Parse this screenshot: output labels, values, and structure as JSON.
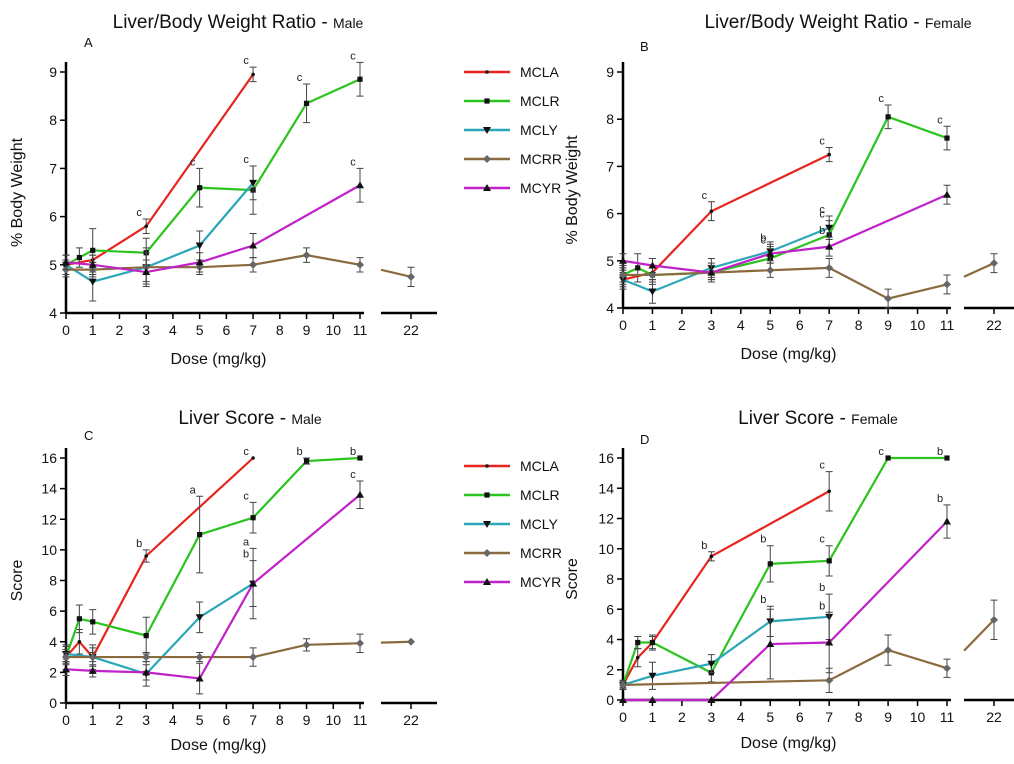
{
  "legend_entries": [
    {
      "name": "MCLA",
      "color": "#e8241f",
      "marker": "dot"
    },
    {
      "name": "MCLR",
      "color": "#2bc41e",
      "marker": "square"
    },
    {
      "name": "MCLY",
      "color": "#2aa7b8",
      "marker": "triangle-down"
    },
    {
      "name": "MCRR",
      "color": "#8b6a3e",
      "marker": "diamond"
    },
    {
      "name": "MCYR",
      "color": "#c021c8",
      "marker": "triangle-up"
    }
  ],
  "chart_data": [
    {
      "type": "line",
      "panel_letter": "A",
      "title": "Liver/Body Weight Ratio",
      "title_sub": "Male",
      "xlabel": "Dose (mg/kg)",
      "ylabel": "% Body Weight",
      "xlim": [
        0,
        11
      ],
      "ylim": [
        4,
        9
      ],
      "x_ticks": [
        0,
        1,
        2,
        3,
        4,
        5,
        6,
        7,
        8,
        9,
        10,
        11
      ],
      "y_ticks": [
        4,
        5,
        6,
        7,
        8,
        9
      ],
      "break_tick": 22,
      "series": [
        {
          "name": "MCLA",
          "x": [
            0,
            1,
            3,
            7
          ],
          "y": [
            5.0,
            5.1,
            5.8,
            8.95
          ],
          "err": [
            0.1,
            0.1,
            0.15,
            0.15
          ],
          "labels": [
            "",
            "",
            "c",
            "c"
          ]
        },
        {
          "name": "MCLR",
          "x": [
            0,
            0.5,
            1,
            3,
            5,
            7,
            9,
            11
          ],
          "y": [
            5.0,
            5.15,
            5.3,
            5.25,
            6.6,
            6.55,
            8.35,
            8.85
          ],
          "err": [
            0.2,
            0.2,
            0.45,
            0.3,
            0.4,
            0.5,
            0.4,
            0.35
          ],
          "labels": [
            "",
            "",
            "",
            "",
            "c",
            "c",
            "c",
            "c"
          ]
        },
        {
          "name": "MCLY",
          "x": [
            0,
            1,
            3,
            5,
            7
          ],
          "y": [
            5.0,
            4.65,
            4.95,
            5.4,
            6.7
          ],
          "err": [
            0.2,
            0.4,
            0.3,
            0.3,
            0.35
          ],
          "labels": [
            "",
            "",
            "",
            "",
            ""
          ]
        },
        {
          "name": "MCRR",
          "x": [
            0,
            1,
            3,
            5,
            7,
            9,
            11,
            22
          ],
          "y": [
            4.9,
            4.9,
            4.95,
            4.95,
            5.0,
            5.2,
            5.0,
            4.75
          ],
          "err": [
            0.15,
            0.15,
            0.4,
            0.15,
            0.15,
            0.15,
            0.15,
            0.2
          ],
          "labels": [
            "",
            "",
            "",
            "",
            "",
            "",
            "",
            ""
          ]
        },
        {
          "name": "MCYR",
          "x": [
            0,
            1,
            3,
            5,
            7,
            11
          ],
          "y": [
            5.05,
            5.0,
            4.85,
            5.05,
            5.4,
            6.65
          ],
          "err": [
            0.15,
            0.2,
            0.25,
            0.2,
            0.25,
            0.35
          ],
          "labels": [
            "",
            "",
            "",
            "",
            "",
            "c"
          ]
        }
      ]
    },
    {
      "type": "line",
      "panel_letter": "B",
      "title": "Liver/Body Weight Ratio",
      "title_sub": "Female",
      "xlabel": "Dose (mg/kg)",
      "ylabel": "% Body Weight",
      "xlim": [
        0,
        11
      ],
      "ylim": [
        4,
        9
      ],
      "x_ticks": [
        0,
        1,
        2,
        3,
        4,
        5,
        6,
        7,
        8,
        9,
        10,
        11
      ],
      "y_ticks": [
        4,
        5,
        6,
        7,
        8,
        9
      ],
      "break_tick": 22,
      "series": [
        {
          "name": "MCLA",
          "x": [
            0,
            1,
            3,
            7
          ],
          "y": [
            4.6,
            4.75,
            6.05,
            7.25
          ],
          "err": [
            0.15,
            0.15,
            0.2,
            0.15
          ],
          "labels": [
            "",
            "",
            "c",
            "c"
          ]
        },
        {
          "name": "MCLR",
          "x": [
            0,
            0.5,
            1,
            3,
            5,
            7,
            9,
            11
          ],
          "y": [
            4.7,
            4.85,
            4.7,
            4.75,
            5.05,
            5.55,
            8.05,
            7.6
          ],
          "err": [
            0.2,
            0.3,
            0.2,
            0.2,
            0.25,
            0.3,
            0.25,
            0.25
          ],
          "labels": [
            "",
            "",
            "",
            "",
            "c",
            "c",
            "c",
            "c"
          ]
        },
        {
          "name": "MCLY",
          "x": [
            0,
            1,
            3,
            5,
            7
          ],
          "y": [
            4.6,
            4.35,
            4.85,
            5.2,
            5.7
          ],
          "err": [
            0.2,
            0.25,
            0.2,
            0.2,
            0.25
          ],
          "labels": [
            "",
            "",
            "",
            "",
            "c"
          ]
        },
        {
          "name": "MCRR",
          "x": [
            0,
            1,
            3,
            5,
            7,
            9,
            11,
            22
          ],
          "y": [
            4.7,
            4.7,
            4.75,
            4.8,
            4.85,
            4.2,
            4.5,
            4.95
          ],
          "err": [
            0.15,
            0.15,
            0.15,
            0.15,
            0.2,
            0.2,
            0.2,
            0.2
          ],
          "labels": [
            "",
            "",
            "",
            "",
            "",
            "",
            "",
            ""
          ]
        },
        {
          "name": "MCYR",
          "x": [
            0,
            1,
            3,
            5,
            7,
            11
          ],
          "y": [
            5.0,
            4.9,
            4.75,
            5.15,
            5.3,
            6.4
          ],
          "err": [
            0.15,
            0.15,
            0.15,
            0.2,
            0.2,
            0.2
          ],
          "labels": [
            "",
            "",
            "",
            "b",
            "b",
            ""
          ]
        }
      ]
    },
    {
      "type": "line",
      "panel_letter": "C",
      "title": "Liver Score",
      "title_sub": "Male",
      "xlabel": "Dose (mg/kg)",
      "ylabel": "Score",
      "xlim": [
        0,
        11
      ],
      "ylim": [
        0,
        16
      ],
      "x_ticks": [
        0,
        1,
        2,
        3,
        4,
        5,
        6,
        7,
        8,
        9,
        10,
        11
      ],
      "y_ticks": [
        0,
        2,
        4,
        6,
        8,
        10,
        12,
        14,
        16
      ],
      "break_tick": 22,
      "series": [
        {
          "name": "MCLA",
          "x": [
            0,
            0.5,
            1,
            3,
            7
          ],
          "y": [
            3.0,
            4.0,
            3.0,
            9.6,
            16
          ],
          "err": [
            0.5,
            0.8,
            0.8,
            0.4,
            0
          ],
          "labels": [
            "",
            "",
            "",
            "b",
            "c"
          ]
        },
        {
          "name": "MCLR",
          "x": [
            0,
            0.5,
            1,
            3,
            5,
            7,
            9,
            11
          ],
          "y": [
            3.0,
            5.5,
            5.3,
            4.4,
            11.0,
            12.1,
            15.8,
            16
          ],
          "err": [
            0.8,
            0.9,
            0.8,
            1.2,
            2.5,
            1.0,
            0.2,
            0
          ],
          "labels": [
            "",
            "",
            "",
            "",
            "a",
            "c",
            "b",
            "b"
          ]
        },
        {
          "name": "MCLY",
          "x": [
            0,
            1,
            3,
            5,
            7
          ],
          "y": [
            3.2,
            3.0,
            1.9,
            5.6,
            7.8
          ],
          "err": [
            0.5,
            0.6,
            0.8,
            1.0,
            2.3
          ],
          "labels": [
            "",
            "",
            "",
            "",
            "a"
          ]
        },
        {
          "name": "MCRR",
          "x": [
            0,
            1,
            3,
            5,
            7,
            9,
            11,
            22
          ],
          "y": [
            3.0,
            3.0,
            3.0,
            3.0,
            3.0,
            3.8,
            3.9,
            4.0
          ],
          "err": [
            0.3,
            0.3,
            0.3,
            0.3,
            0.6,
            0.4,
            0.6,
            0
          ],
          "labels": [
            "",
            "",
            "",
            "",
            "",
            "",
            "",
            ""
          ]
        },
        {
          "name": "MCYR",
          "x": [
            0,
            1,
            3,
            5,
            7,
            11
          ],
          "y": [
            2.2,
            2.1,
            2.0,
            1.6,
            7.8,
            13.6
          ],
          "err": [
            0.4,
            0.4,
            0.5,
            1.0,
            1.5,
            0.9
          ],
          "labels": [
            "",
            "",
            "",
            "",
            "b",
            "c"
          ]
        }
      ]
    },
    {
      "type": "line",
      "panel_letter": "D",
      "title": "Liver Score",
      "title_sub": "Female",
      "xlabel": "Dose (mg/kg)",
      "ylabel": "Score",
      "xlim": [
        0,
        11
      ],
      "ylim": [
        0,
        16
      ],
      "x_ticks": [
        0,
        1,
        2,
        3,
        4,
        5,
        6,
        7,
        8,
        9,
        10,
        11
      ],
      "y_ticks": [
        0,
        2,
        4,
        6,
        8,
        10,
        12,
        14,
        16
      ],
      "break_tick": 22,
      "series": [
        {
          "name": "MCLA",
          "x": [
            0,
            0.5,
            1,
            3,
            7
          ],
          "y": [
            1.0,
            2.8,
            3.8,
            9.5,
            13.8
          ],
          "err": [
            0.3,
            0.6,
            0.5,
            0.3,
            1.3
          ],
          "labels": [
            "",
            "",
            "",
            "b",
            "c"
          ]
        },
        {
          "name": "MCLR",
          "x": [
            0,
            0.5,
            1,
            3,
            5,
            7,
            9,
            11
          ],
          "y": [
            1.0,
            3.8,
            3.8,
            1.8,
            9.0,
            9.2,
            16,
            16
          ],
          "err": [
            0.3,
            0.4,
            0.4,
            0.6,
            1.2,
            1.0,
            0,
            0
          ],
          "labels": [
            "",
            "",
            "",
            "",
            "b",
            "c",
            "c",
            "b"
          ]
        },
        {
          "name": "MCLY",
          "x": [
            0,
            1,
            3,
            5,
            7
          ],
          "y": [
            1.0,
            1.6,
            2.4,
            5.2,
            5.5
          ],
          "err": [
            0.3,
            0.9,
            0.6,
            1.0,
            1.5
          ],
          "labels": [
            "",
            "",
            "",
            "b",
            "b"
          ]
        },
        {
          "name": "MCRR",
          "x": [
            0,
            7,
            9,
            11,
            22
          ],
          "y": [
            1.0,
            1.3,
            3.3,
            2.1,
            5.3
          ],
          "err": [
            0.2,
            0.8,
            1.0,
            0.6,
            1.3
          ],
          "labels": [
            "",
            "",
            "",
            "",
            ""
          ]
        },
        {
          "name": "MCYR",
          "x": [
            0,
            1,
            3,
            5,
            7,
            11
          ],
          "y": [
            0,
            0,
            0,
            3.7,
            3.8,
            11.8
          ],
          "err": [
            0,
            0,
            0,
            2.3,
            2.0,
            1.1
          ],
          "labels": [
            "",
            "",
            "",
            "",
            "b",
            "b"
          ]
        }
      ]
    }
  ]
}
